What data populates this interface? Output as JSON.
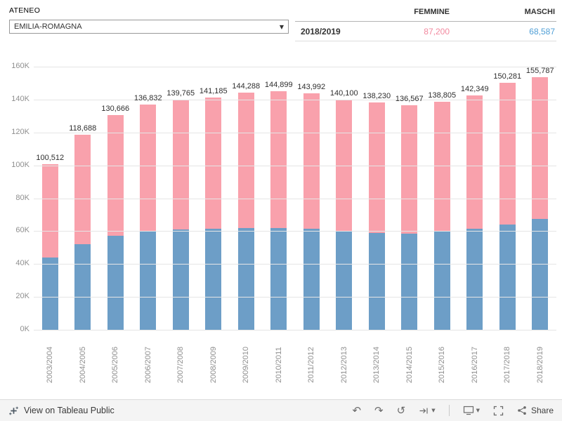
{
  "filter": {
    "label": "ATENEO",
    "value": "EMILIA-ROMAGNA"
  },
  "summary_table": {
    "col_femmine": "FEMMINE",
    "col_maschi": "MASCHI",
    "row_label": "2018/2019",
    "femmine_value": "87,200",
    "maschi_value": "68,587",
    "femmine_color": "#f2899f",
    "maschi_color": "#4f9fd6"
  },
  "chart_data": {
    "type": "bar",
    "stacked": true,
    "title": "",
    "xlabel": "",
    "ylabel": "",
    "grid": true,
    "ylim": [
      0,
      160000
    ],
    "yticks": [
      0,
      20000,
      40000,
      60000,
      80000,
      100000,
      120000,
      140000,
      160000
    ],
    "ytick_labels": [
      "0K",
      "20K",
      "40K",
      "60K",
      "80K",
      "100K",
      "120K",
      "140K",
      "160K"
    ],
    "categories": [
      "2003/2004",
      "2004/2005",
      "2005/2006",
      "2006/2007",
      "2007/2008",
      "2008/2009",
      "2009/2010",
      "2010/2011",
      "2011/2012",
      "2012/2013",
      "2013/2014",
      "2014/2015",
      "2015/2016",
      "2016/2017",
      "2017/2018",
      "2018/2019"
    ],
    "series": [
      {
        "name": "MASCHI",
        "color": "#6d9ec7",
        "values": [
          44000,
          52000,
          57000,
          60000,
          61000,
          61500,
          62000,
          62000,
          61500,
          60000,
          59000,
          58500,
          60000,
          61500,
          64000,
          68587
        ]
      },
      {
        "name": "FEMMINE",
        "color": "#f9a1ac",
        "values": [
          56512,
          66688,
          73666,
          76832,
          78765,
          79685,
          82288,
          82899,
          82492,
          80100,
          79230,
          78067,
          78805,
          80849,
          86281,
          87200
        ]
      }
    ],
    "totals": [
      100512,
      118688,
      130666,
      136832,
      139765,
      141185,
      144288,
      144899,
      143992,
      140100,
      138230,
      136567,
      138805,
      142349,
      150281,
      155787
    ],
    "total_labels": [
      "100,512",
      "118,688",
      "130,666",
      "136,832",
      "139,765",
      "141,185",
      "144,288",
      "144,899",
      "143,992",
      "140,100",
      "138,230",
      "136,567",
      "138,805",
      "142,349",
      "150,281",
      "155,787"
    ]
  },
  "footer": {
    "view_label": "View on Tableau Public",
    "share_label": "Share",
    "icons": [
      "tableau-logo-icon",
      "undo-icon",
      "redo-icon",
      "revert-icon",
      "pause-icon",
      "caret-down-icon",
      "download-icon",
      "caret-down-icon",
      "fullscreen-icon",
      "share-icon"
    ]
  }
}
